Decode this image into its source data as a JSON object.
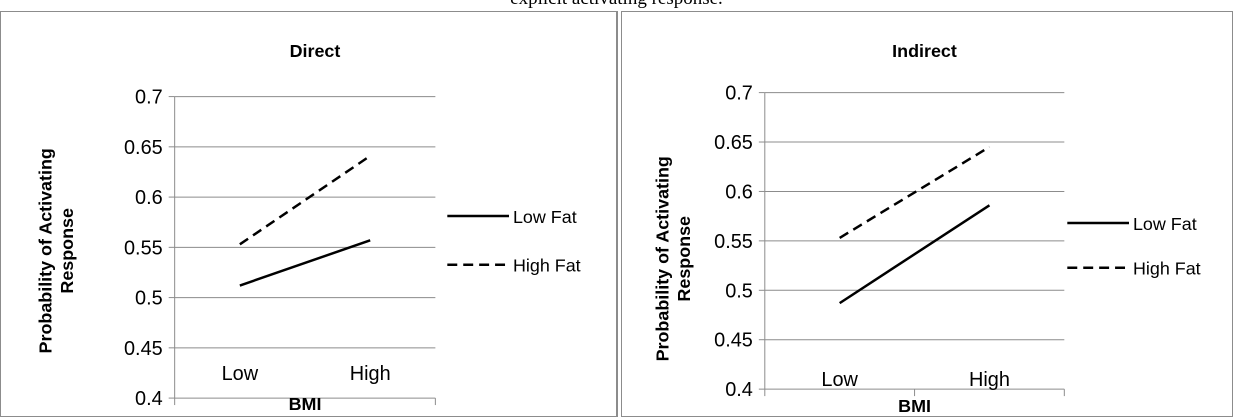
{
  "caption": "explicit activating response.",
  "chart_data": [
    {
      "type": "line",
      "title": "Direct",
      "xlabel": "BMI",
      "ylabel": "Probability of Activating Response",
      "ylabel_lines": [
        "Probability of Activating",
        "Response"
      ],
      "categories": [
        "Low",
        "High"
      ],
      "ylim": [
        0.4,
        0.7
      ],
      "yticks": [
        "0.4",
        "0.45",
        "0.5",
        "0.55",
        "0.6",
        "0.65",
        "0.7"
      ],
      "grid": true,
      "legend_position": "right",
      "series": [
        {
          "name": "Low Fat",
          "values": [
            0.512,
            0.557
          ],
          "style": "solid",
          "color": "#000000"
        },
        {
          "name": "High Fat",
          "values": [
            0.553,
            0.641
          ],
          "style": "dashed",
          "color": "#000000"
        }
      ]
    },
    {
      "type": "line",
      "title": "Indirect",
      "xlabel": "BMI",
      "ylabel": "Probability of Activating Response",
      "ylabel_lines": [
        "Probability of Activating",
        "Response"
      ],
      "categories": [
        "Low",
        "High"
      ],
      "ylim": [
        0.4,
        0.7
      ],
      "yticks": [
        "0.4",
        "0.45",
        "0.5",
        "0.55",
        "0.6",
        "0.65",
        "0.7"
      ],
      "grid": true,
      "legend_position": "right",
      "series": [
        {
          "name": "Low Fat",
          "values": [
            0.487,
            0.586
          ],
          "style": "solid",
          "color": "#000000"
        },
        {
          "name": "High Fat",
          "values": [
            0.553,
            0.645
          ],
          "style": "dashed",
          "color": "#000000"
        }
      ]
    }
  ]
}
